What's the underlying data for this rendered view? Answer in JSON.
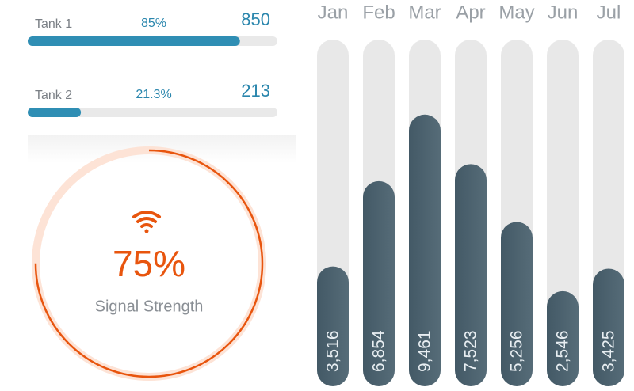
{
  "tanks": [
    {
      "label": "Tank 1",
      "percent": 85,
      "percent_label": "85%",
      "value": 850
    },
    {
      "label": "Tank 2",
      "percent": 21.3,
      "percent_label": "21.3%",
      "value": 213
    }
  ],
  "gauge": {
    "value": 75,
    "value_label": "75%",
    "label": "Signal Strength"
  },
  "chart_data": {
    "type": "bar",
    "categories": [
      "Jan",
      "Feb",
      "Mar",
      "Apr",
      "May",
      "Jun",
      "Jul"
    ],
    "values": [
      3516,
      6854,
      9461,
      7523,
      5256,
      2546,
      3425
    ],
    "value_labels": [
      "3,516",
      "6,854",
      "9,461",
      "7,523",
      "5,256",
      "2,546",
      "3,425"
    ],
    "ylim": [
      0,
      12400
    ]
  }
}
